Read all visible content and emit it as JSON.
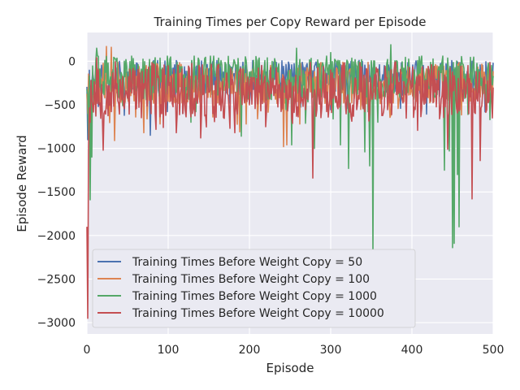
{
  "chart_data": {
    "type": "line",
    "title": "Training Times per Copy Reward per Episode",
    "xlabel": "Episode",
    "ylabel": "Episode Reward",
    "xlim": [
      0,
      500
    ],
    "ylim": [
      -3130,
      330
    ],
    "xticks": [
      0,
      100,
      200,
      300,
      400,
      500
    ],
    "yticks": [
      0,
      -500,
      -1000,
      -1500,
      -2000,
      -2500,
      -3000
    ],
    "xtick_labels": [
      "0",
      "100",
      "200",
      "300",
      "400",
      "500"
    ],
    "ytick_labels": [
      "0",
      "−500",
      "−1000",
      "−1500",
      "−2000",
      "−2500",
      "−3000"
    ],
    "grid": true,
    "legend_position": "lower-left",
    "series": [
      {
        "name": "Training Times Before Weight Copy = 50",
        "color": "#4c72b0",
        "base": -190,
        "amp": 200,
        "seed": 11,
        "spikes": [
          [
            1,
            -900
          ],
          [
            2,
            -720
          ],
          [
            4,
            -560
          ],
          [
            10,
            -440
          ],
          [
            14,
            -520
          ],
          [
            24,
            -300
          ],
          [
            46,
            -620
          ],
          [
            60,
            -480
          ],
          [
            78,
            -850
          ],
          [
            118,
            -600
          ],
          [
            176,
            -480
          ],
          [
            386,
            -540
          ],
          [
            440,
            -420
          ],
          [
            462,
            -360
          ],
          [
            490,
            -580
          ]
        ]
      },
      {
        "name": "Training Times Before Weight Copy = 100",
        "color": "#dd8452",
        "base": -250,
        "amp": 240,
        "seed": 23,
        "spikes": [
          [
            1,
            -600
          ],
          [
            24,
            170
          ],
          [
            30,
            160
          ],
          [
            34,
            -910
          ],
          [
            60,
            -640
          ],
          [
            70,
            -820
          ],
          [
            90,
            -720
          ],
          [
            130,
            -560
          ],
          [
            188,
            -810
          ],
          [
            196,
            -720
          ],
          [
            210,
            -660
          ],
          [
            242,
            -980
          ],
          [
            246,
            -960
          ],
          [
            262,
            -720
          ],
          [
            300,
            -500
          ],
          [
            332,
            -480
          ],
          [
            365,
            -230
          ],
          [
            420,
            -420
          ],
          [
            480,
            -420
          ]
        ]
      },
      {
        "name": "Training Times Before Weight Copy = 1000",
        "color": "#55a868",
        "base": -190,
        "amp": 260,
        "seed": 37,
        "spikes": [
          [
            2,
            -900
          ],
          [
            4,
            -1590
          ],
          [
            6,
            -1100
          ],
          [
            8,
            -380
          ],
          [
            12,
            150
          ],
          [
            128,
            -700
          ],
          [
            190,
            -860
          ],
          [
            252,
            -960
          ],
          [
            258,
            150
          ],
          [
            280,
            -1000
          ],
          [
            300,
            100
          ],
          [
            312,
            -960
          ],
          [
            322,
            -1230
          ],
          [
            342,
            -1040
          ],
          [
            348,
            -1200
          ],
          [
            352,
            -2220
          ],
          [
            358,
            -700
          ],
          [
            374,
            190
          ],
          [
            440,
            -1250
          ],
          [
            446,
            -1030
          ],
          [
            450,
            -2140
          ],
          [
            452,
            -2090
          ],
          [
            456,
            -1300
          ],
          [
            458,
            -1900
          ],
          [
            496,
            -670
          ]
        ]
      },
      {
        "name": "Training Times Before Weight Copy = 10000",
        "color": "#c44e52",
        "base": -330,
        "amp": 330,
        "seed": 53,
        "spikes": [
          [
            0,
            -1900
          ],
          [
            1,
            -2950
          ],
          [
            2,
            -1000
          ],
          [
            4,
            -700
          ],
          [
            12,
            40
          ],
          [
            20,
            -1020
          ],
          [
            94,
            -760
          ],
          [
            110,
            -820
          ],
          [
            140,
            -880
          ],
          [
            176,
            -770
          ],
          [
            182,
            -820
          ],
          [
            200,
            -500
          ],
          [
            278,
            -1340
          ],
          [
            434,
            -660
          ],
          [
            444,
            -1010
          ],
          [
            462,
            -400
          ],
          [
            474,
            -1580
          ],
          [
            484,
            -1140
          ],
          [
            498,
            -380
          ]
        ]
      }
    ]
  }
}
